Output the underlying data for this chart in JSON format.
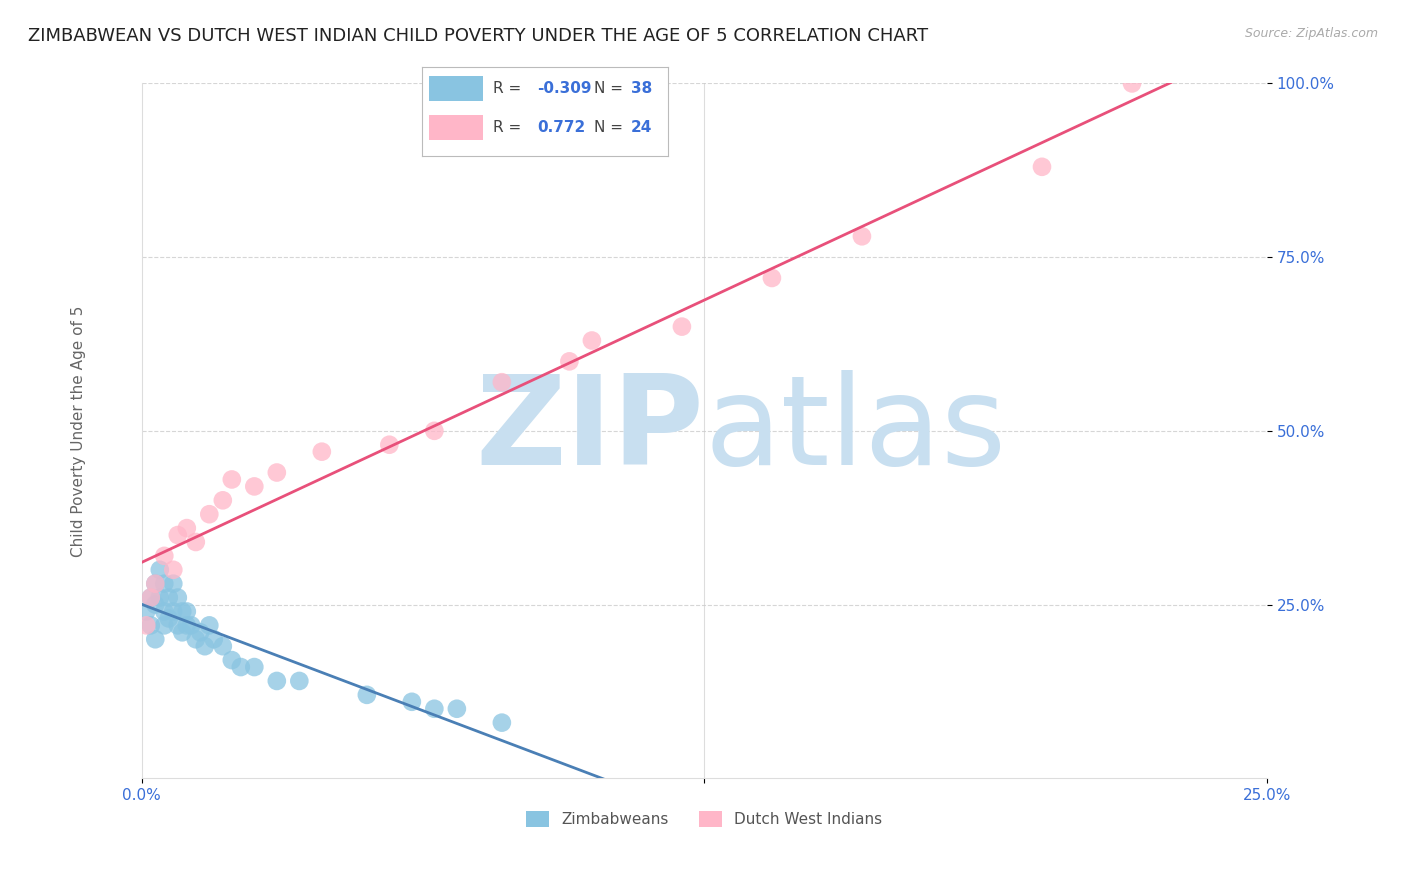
{
  "title": "ZIMBABWEAN VS DUTCH WEST INDIAN CHILD POVERTY UNDER THE AGE OF 5 CORRELATION CHART",
  "source": "Source: ZipAtlas.com",
  "ylabel": "Child Poverty Under the Age of 5",
  "xlim": [
    0.0,
    0.25
  ],
  "ylim": [
    0.0,
    1.0
  ],
  "xticks": [
    0.0,
    0.125,
    0.25
  ],
  "xticklabels": [
    "0.0%",
    "",
    "25.0%"
  ],
  "yticks": [
    0.25,
    0.5,
    0.75,
    1.0
  ],
  "yticklabels": [
    "25.0%",
    "50.0%",
    "75.0%",
    "100.0%"
  ],
  "background_color": "#ffffff",
  "watermark_zip": "ZIP",
  "watermark_atlas": "atlas",
  "watermark_color": "#c8dff0",
  "series": [
    {
      "name": "Zimbabweans",
      "color": "#89c4e1",
      "line_color": "#4a7fb5",
      "R": -0.309,
      "N": 38,
      "x": [
        0.001,
        0.002,
        0.002,
        0.003,
        0.003,
        0.003,
        0.004,
        0.004,
        0.005,
        0.005,
        0.005,
        0.006,
        0.006,
        0.007,
        0.007,
        0.008,
        0.008,
        0.009,
        0.009,
        0.01,
        0.01,
        0.011,
        0.012,
        0.013,
        0.014,
        0.015,
        0.016,
        0.018,
        0.02,
        0.022,
        0.025,
        0.03,
        0.035,
        0.05,
        0.06,
        0.065,
        0.07,
        0.08
      ],
      "y": [
        0.24,
        0.26,
        0.22,
        0.28,
        0.25,
        0.2,
        0.3,
        0.26,
        0.28,
        0.24,
        0.22,
        0.26,
        0.23,
        0.28,
        0.24,
        0.26,
        0.22,
        0.24,
        0.21,
        0.24,
        0.22,
        0.22,
        0.2,
        0.21,
        0.19,
        0.22,
        0.2,
        0.19,
        0.17,
        0.16,
        0.16,
        0.14,
        0.14,
        0.12,
        0.11,
        0.1,
        0.1,
        0.08
      ]
    },
    {
      "name": "Dutch West Indians",
      "color": "#ffb6c8",
      "line_color": "#e8507a",
      "R": 0.772,
      "N": 24,
      "x": [
        0.001,
        0.002,
        0.003,
        0.005,
        0.007,
        0.008,
        0.01,
        0.012,
        0.015,
        0.018,
        0.02,
        0.025,
        0.03,
        0.04,
        0.055,
        0.065,
        0.08,
        0.095,
        0.1,
        0.12,
        0.14,
        0.16,
        0.2,
        0.22
      ],
      "y": [
        0.22,
        0.26,
        0.28,
        0.32,
        0.3,
        0.35,
        0.36,
        0.34,
        0.38,
        0.4,
        0.43,
        0.42,
        0.44,
        0.47,
        0.48,
        0.5,
        0.57,
        0.6,
        0.63,
        0.65,
        0.72,
        0.78,
        0.88,
        1.0
      ]
    }
  ],
  "legend_R_color": "#3a6fd8",
  "title_fontsize": 13,
  "axis_label_fontsize": 11,
  "tick_fontsize": 11,
  "tick_color": "#3a6fd8"
}
